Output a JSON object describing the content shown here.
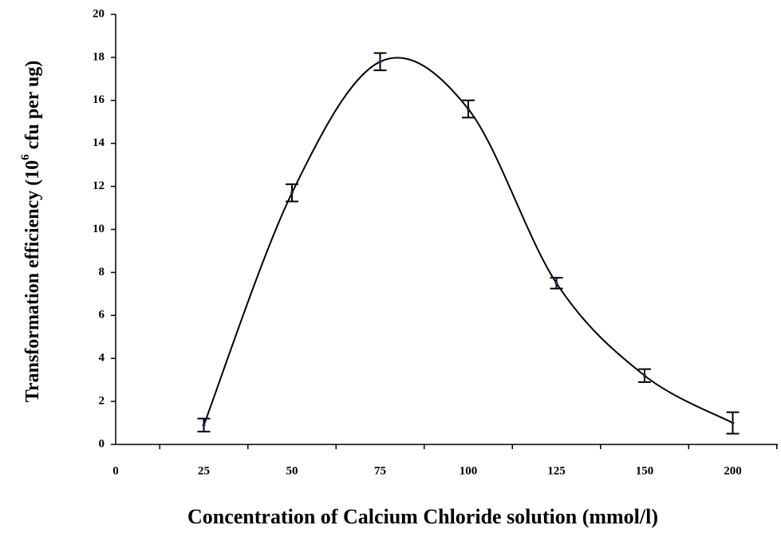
{
  "chart_data": {
    "type": "line",
    "xlabel": "Concentration of Calcium Chloride solution (mmol/l)",
    "ylabel_parts": [
      "Transformation efficiency (10",
      "6",
      " cfu per ug)"
    ],
    "categories": [
      "0",
      "25",
      "50",
      "75",
      "100",
      "125",
      "150",
      "200"
    ],
    "values": [
      null,
      0.9,
      11.7,
      17.8,
      15.6,
      7.5,
      3.2,
      1.0
    ],
    "errors": [
      null,
      0.3,
      0.4,
      0.4,
      0.4,
      0.25,
      0.3,
      0.5
    ],
    "color": "#000000",
    "ylim": [
      0,
      20
    ],
    "yticks": [
      0,
      2,
      4,
      6,
      8,
      10,
      12,
      14,
      16,
      18,
      20
    ],
    "grid": false
  }
}
